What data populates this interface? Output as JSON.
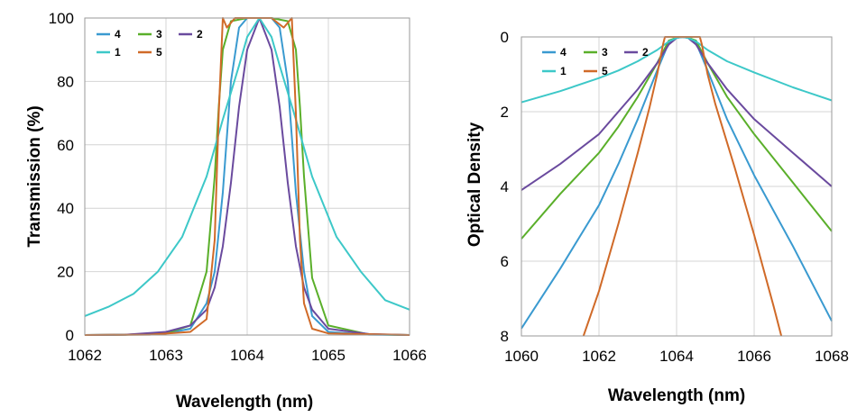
{
  "chart_data": [
    {
      "type": "line",
      "xlabel": "Wavelength (nm)",
      "ylabel": "Transmission (%)",
      "xlim": [
        1062,
        1066
      ],
      "ylim": [
        0,
        100
      ],
      "x_ticks": [
        1062,
        1063,
        1064,
        1065,
        1066
      ],
      "y_ticks": [
        0,
        20,
        40,
        60,
        80,
        100
      ],
      "y_reversed": false,
      "grid": true,
      "legend_position": "top-left",
      "series": [
        {
          "name": "4",
          "color": "#3a9ad0",
          "x": [
            1062,
            1062.5,
            1063,
            1063.3,
            1063.5,
            1063.6,
            1063.7,
            1063.8,
            1063.9,
            1064.0,
            1064.15,
            1064.3,
            1064.4,
            1064.5,
            1064.6,
            1064.7,
            1064.8,
            1065.0,
            1065.5,
            1066
          ],
          "values": [
            0,
            0.1,
            0.5,
            2,
            10,
            20,
            45,
            80,
            97,
            100,
            100,
            100,
            97,
            80,
            45,
            20,
            6,
            1,
            0.1,
            0
          ]
        },
        {
          "name": "3",
          "color": "#5aaf2a",
          "x": [
            1062,
            1062.5,
            1063,
            1063.3,
            1063.5,
            1063.6,
            1063.65,
            1063.7,
            1063.8,
            1064.0,
            1064.15,
            1064.3,
            1064.5,
            1064.6,
            1064.65,
            1064.7,
            1064.8,
            1065.0,
            1065.5,
            1066
          ],
          "values": [
            0,
            0.1,
            0.5,
            3,
            20,
            50,
            72,
            90,
            99,
            100,
            100,
            100,
            99,
            90,
            72,
            50,
            18,
            3,
            0.2,
            0
          ]
        },
        {
          "name": "2",
          "color": "#6a4a9e",
          "x": [
            1062,
            1062.5,
            1063,
            1063.3,
            1063.5,
            1063.6,
            1063.7,
            1063.8,
            1063.9,
            1064.0,
            1064.15,
            1064.3,
            1064.4,
            1064.5,
            1064.6,
            1064.7,
            1064.8,
            1065.0,
            1065.5,
            1066
          ],
          "values": [
            0,
            0.1,
            1,
            3,
            8,
            15,
            28,
            48,
            72,
            90,
            100,
            90,
            72,
            48,
            28,
            15,
            8,
            2,
            0.3,
            0
          ]
        },
        {
          "name": "1",
          "color": "#3dc8c8",
          "x": [
            1062,
            1062.3,
            1062.6,
            1062.9,
            1063.2,
            1063.5,
            1063.7,
            1063.9,
            1064.0,
            1064.15,
            1064.3,
            1064.4,
            1064.6,
            1064.8,
            1065.1,
            1065.4,
            1065.7,
            1066
          ],
          "values": [
            6,
            9,
            13,
            20,
            31,
            50,
            68,
            85,
            94,
            100,
            94,
            85,
            68,
            50,
            31,
            20,
            11,
            8
          ]
        },
        {
          "name": "5",
          "color": "#d06a28",
          "x": [
            1062,
            1062.8,
            1063.3,
            1063.5,
            1063.6,
            1063.65,
            1063.7,
            1063.75,
            1063.85,
            1064.0,
            1064.15,
            1064.3,
            1064.45,
            1064.55,
            1064.6,
            1064.65,
            1064.7,
            1064.8,
            1065.0,
            1066
          ],
          "values": [
            0,
            0.1,
            1,
            5,
            30,
            70,
            100,
            97,
            100,
            100,
            100,
            100,
            97,
            100,
            70,
            30,
            10,
            2,
            0.5,
            0
          ]
        }
      ]
    },
    {
      "type": "line",
      "xlabel": "Wavelength (nm)",
      "ylabel": "Optical Density",
      "xlim": [
        1060,
        1068
      ],
      "ylim": [
        0,
        8
      ],
      "x_ticks": [
        1060,
        1062,
        1064,
        1066,
        1068
      ],
      "y_ticks": [
        0,
        2,
        4,
        6,
        8
      ],
      "y_reversed": true,
      "grid": true,
      "legend_position": "top-left",
      "series": [
        {
          "name": "4",
          "color": "#3a9ad0",
          "x": [
            1060,
            1061,
            1062,
            1062.5,
            1063,
            1063.5,
            1063.8,
            1064.0,
            1064.15,
            1064.3,
            1064.5,
            1064.8,
            1065.3,
            1066,
            1067,
            1068
          ],
          "values": [
            7.8,
            6.2,
            4.5,
            3.4,
            2.2,
            0.9,
            0.15,
            0.02,
            0,
            0.02,
            0.15,
            0.9,
            2.2,
            3.7,
            5.6,
            7.6
          ]
        },
        {
          "name": "3",
          "color": "#5aaf2a",
          "x": [
            1060,
            1061,
            1062,
            1062.5,
            1063,
            1063.5,
            1063.8,
            1064.0,
            1064.15,
            1064.3,
            1064.5,
            1064.8,
            1065.3,
            1066,
            1067,
            1068
          ],
          "values": [
            5.4,
            4.2,
            3.1,
            2.4,
            1.6,
            0.7,
            0.1,
            0.02,
            0,
            0.02,
            0.1,
            0.7,
            1.6,
            2.6,
            3.9,
            5.2
          ]
        },
        {
          "name": "2",
          "color": "#6a4a9e",
          "x": [
            1060,
            1061,
            1062,
            1062.5,
            1063,
            1063.5,
            1063.8,
            1064.0,
            1064.15,
            1064.3,
            1064.5,
            1064.8,
            1065.3,
            1066,
            1067,
            1068
          ],
          "values": [
            4.1,
            3.4,
            2.6,
            2.0,
            1.4,
            0.7,
            0.2,
            0.03,
            0,
            0.03,
            0.2,
            0.7,
            1.4,
            2.2,
            3.1,
            4.0
          ]
        },
        {
          "name": "1",
          "color": "#3dc8c8",
          "x": [
            1060,
            1061,
            1062,
            1062.5,
            1063,
            1063.5,
            1063.8,
            1064.0,
            1064.15,
            1064.3,
            1064.5,
            1064.8,
            1065.3,
            1066,
            1067,
            1068
          ],
          "values": [
            1.75,
            1.45,
            1.1,
            0.9,
            0.65,
            0.35,
            0.12,
            0.03,
            0,
            0.03,
            0.12,
            0.35,
            0.65,
            0.95,
            1.35,
            1.7
          ]
        },
        {
          "name": "5",
          "color": "#d06a28",
          "x": [
            1061.6,
            1062,
            1062.5,
            1063,
            1063.3,
            1063.5,
            1063.65,
            1063.7,
            1064.6,
            1064.65,
            1064.8,
            1065,
            1065.5,
            1066,
            1066.5,
            1066.7
          ],
          "values": [
            8,
            6.8,
            5.0,
            3.1,
            1.9,
            1.0,
            0.2,
            0,
            0,
            0.2,
            1.0,
            1.8,
            3.5,
            5.3,
            7.2,
            8
          ]
        }
      ]
    }
  ]
}
